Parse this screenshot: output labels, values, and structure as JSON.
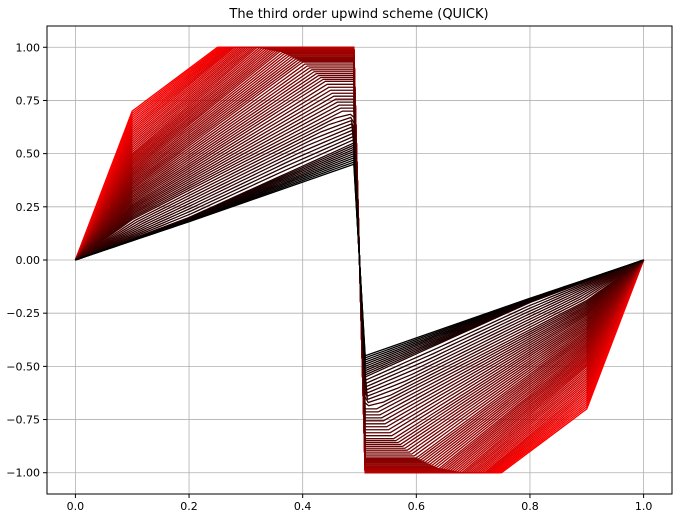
{
  "chart_data": {
    "type": "line",
    "title": "The third order upwind scheme (QUICK)",
    "xlabel": "",
    "ylabel": "",
    "xlim": [
      -0.05,
      1.05
    ],
    "ylim": [
      -1.1,
      1.1
    ],
    "grid": true,
    "xticks": [
      0.0,
      0.2,
      0.4,
      0.6,
      0.8,
      1.0
    ],
    "xtick_labels": [
      "0.0",
      "0.2",
      "0.4",
      "0.6",
      "0.8",
      "1.0"
    ],
    "yticks": [
      1.0,
      0.75,
      0.5,
      0.25,
      0.0,
      -0.25,
      -0.5,
      -0.75,
      -1.0
    ],
    "ytick_labels": [
      "1.00",
      "0.75",
      "0.50",
      "0.25",
      "0.00",
      "−0.25",
      "−0.50",
      "−0.75",
      "−1.00"
    ],
    "colors": {
      "start": "#ff0000",
      "end": "#000000"
    },
    "series_description": "Family of evolving profiles colored from red (early) to black (late)",
    "series": [
      {
        "x": [
          0.0,
          0.1,
          0.25,
          0.49,
          0.5,
          0.51,
          0.75,
          0.9,
          1.0
        ],
        "y": [
          0.0,
          0.7,
          1.0,
          1.0,
          0.0,
          -1.0,
          -1.0,
          -0.7,
          0.0
        ]
      },
      {
        "x": [
          0.0,
          0.1,
          0.28,
          0.49,
          0.5,
          0.51,
          0.72,
          0.9,
          1.0
        ],
        "y": [
          0.0,
          0.6,
          1.0,
          1.0,
          0.0,
          -1.0,
          -1.0,
          -0.6,
          0.0
        ]
      },
      {
        "x": [
          0.0,
          0.1,
          0.32,
          0.49,
          0.5,
          0.51,
          0.68,
          0.9,
          1.0
        ],
        "y": [
          0.0,
          0.5,
          1.0,
          1.0,
          0.0,
          -1.0,
          -1.0,
          -0.5,
          0.0
        ]
      },
      {
        "x": [
          0.0,
          0.1,
          0.36,
          0.49,
          0.5,
          0.51,
          0.64,
          0.9,
          1.0
        ],
        "y": [
          0.0,
          0.42,
          0.98,
          0.98,
          0.0,
          -0.98,
          -0.98,
          -0.42,
          0.0
        ]
      },
      {
        "x": [
          0.0,
          0.1,
          0.4,
          0.49,
          0.5,
          0.51,
          0.6,
          0.9,
          1.0
        ],
        "y": [
          0.0,
          0.34,
          0.93,
          0.93,
          0.0,
          -0.93,
          -0.93,
          -0.34,
          0.0
        ]
      },
      {
        "x": [
          0.0,
          0.1,
          0.44,
          0.49,
          0.5,
          0.51,
          0.56,
          0.9,
          1.0
        ],
        "y": [
          0.0,
          0.26,
          0.84,
          0.84,
          0.0,
          -0.84,
          -0.84,
          -0.26,
          0.0
        ]
      },
      {
        "x": [
          0.0,
          0.1,
          0.47,
          0.49,
          0.5,
          0.51,
          0.53,
          0.9,
          1.0
        ],
        "y": [
          0.0,
          0.19,
          0.7,
          0.7,
          0.0,
          -0.7,
          -0.7,
          -0.19,
          0.0
        ]
      },
      {
        "x": [
          0.0,
          0.2,
          0.49,
          0.5,
          0.51,
          0.8,
          1.0
        ],
        "y": [
          0.0,
          0.2,
          0.55,
          0.0,
          -0.55,
          -0.2,
          0.0
        ]
      },
      {
        "x": [
          0.0,
          0.2,
          0.49,
          0.5,
          0.51,
          0.8,
          1.0
        ],
        "y": [
          0.0,
          0.18,
          0.45,
          0.0,
          -0.45,
          -0.18,
          0.0
        ]
      }
    ]
  }
}
